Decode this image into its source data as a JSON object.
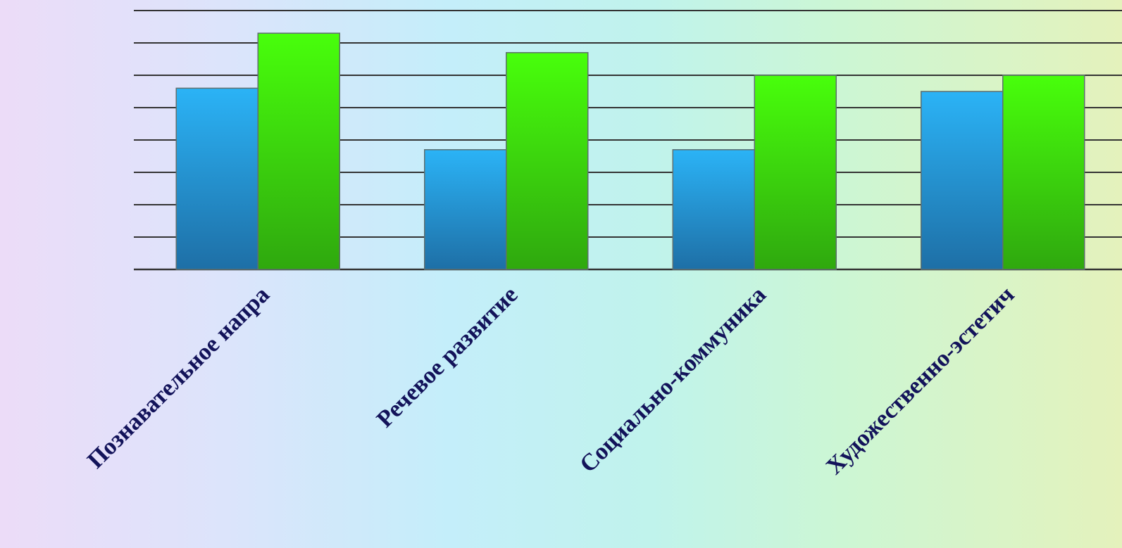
{
  "chart_data": {
    "type": "bar",
    "categories": [
      "Познавательное напра",
      "Речевое развитие",
      "Социально-коммуника",
      "Художественно-эстетич"
    ],
    "series": [
      {
        "values": [
          5.6,
          3.7,
          3.7,
          5.5
        ],
        "color": "#2aaef0"
      },
      {
        "values": [
          7.3,
          6.7,
          6.0,
          6.0
        ],
        "color": "#44f40c"
      }
    ],
    "ylim": [
      0,
      8
    ],
    "yticks": [
      0,
      1,
      2,
      3,
      4,
      5,
      6,
      7,
      8
    ],
    "grid": true,
    "legend": "none",
    "xlabel": "",
    "ylabel": ""
  }
}
